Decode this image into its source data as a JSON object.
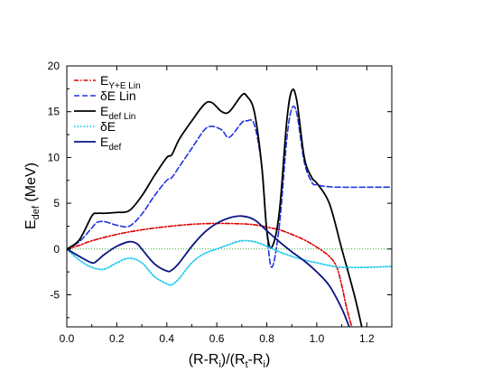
{
  "chart_data": {
    "type": "line",
    "xlabel": {
      "parts": [
        {
          "t": "(R-R",
          "sub": false
        },
        {
          "t": "i",
          "sub": true
        },
        {
          "t": ")/(R",
          "sub": false
        },
        {
          "t": "t",
          "sub": true
        },
        {
          "t": "-R",
          "sub": false
        },
        {
          "t": "i",
          "sub": true
        },
        {
          "t": ")",
          "sub": false
        }
      ]
    },
    "ylabel": {
      "parts": [
        {
          "t": "E",
          "sub": false
        },
        {
          "t": "def",
          "sub": true
        },
        {
          "t": " (MeV)",
          "sub": false
        }
      ]
    },
    "xlim": [
      0,
      1.3
    ],
    "ylim": [
      -8.5,
      20
    ],
    "x_ticks": [
      0.0,
      0.2,
      0.4,
      0.6,
      0.8,
      1.0,
      1.2
    ],
    "x_tick_labels": [
      "0.0",
      "0.2",
      "0.4",
      "0.6",
      "0.8",
      "1.0",
      "1.2"
    ],
    "y_ticks": [
      -5,
      0,
      5,
      10,
      15,
      20
    ],
    "y_tick_labels": [
      "-5",
      "0",
      "5",
      "10",
      "15",
      "20"
    ],
    "legend_position": "top-left",
    "zero_line": {
      "color": "#33aa33",
      "style": "dotted"
    },
    "series": [
      {
        "name_parts": [
          {
            "t": "E",
            "sub": false
          },
          {
            "t": "Y+E Lin",
            "sub": true
          }
        ],
        "color": "#dd0000",
        "dash": "dashdot",
        "width": 1.6,
        "x": [
          0,
          0.05,
          0.1,
          0.2,
          0.3,
          0.4,
          0.5,
          0.6,
          0.7,
          0.75,
          0.8,
          0.85,
          0.9,
          0.95,
          1.0,
          1.05,
          1.08,
          1.1,
          1.12,
          1.14,
          1.15
        ],
        "y": [
          0,
          0.4,
          0.9,
          1.6,
          2.1,
          2.45,
          2.7,
          2.8,
          2.75,
          2.65,
          2.4,
          2.1,
          1.6,
          1.0,
          0.2,
          -0.8,
          -2.0,
          -4.0,
          -6.5,
          -8.5,
          -9.5
        ]
      },
      {
        "name_parts": [
          {
            "t": "δE Lin",
            "sub": false
          }
        ],
        "color": "#2233dd",
        "dash": "dashed",
        "width": 1.6,
        "x": [
          0,
          0.05,
          0.1,
          0.12,
          0.15,
          0.2,
          0.25,
          0.3,
          0.35,
          0.4,
          0.42,
          0.45,
          0.5,
          0.55,
          0.58,
          0.62,
          0.65,
          0.7,
          0.72,
          0.75,
          0.78,
          0.8,
          0.82,
          0.85,
          0.88,
          0.9,
          0.92,
          0.95,
          0.98,
          1.0,
          1.05,
          1.1,
          1.2,
          1.3
        ],
        "y": [
          0,
          0.8,
          2.3,
          2.9,
          3.0,
          2.6,
          2.5,
          3.8,
          5.8,
          7.5,
          7.8,
          9.0,
          11.0,
          13.0,
          13.4,
          13.0,
          12.2,
          13.8,
          14.0,
          13.6,
          9.0,
          2.0,
          -2.0,
          2.5,
          12.0,
          15.3,
          14.8,
          9.5,
          7.3,
          7.0,
          6.8,
          6.75,
          6.75,
          6.75
        ]
      },
      {
        "name_parts": [
          {
            "t": "E",
            "sub": false
          },
          {
            "t": "def Lin",
            "sub": true
          }
        ],
        "color": "#000000",
        "dash": "solid",
        "width": 1.8,
        "x": [
          0,
          0.05,
          0.1,
          0.12,
          0.15,
          0.2,
          0.25,
          0.3,
          0.35,
          0.4,
          0.42,
          0.45,
          0.5,
          0.55,
          0.58,
          0.62,
          0.65,
          0.7,
          0.72,
          0.75,
          0.78,
          0.8,
          0.82,
          0.85,
          0.88,
          0.9,
          0.92,
          0.95,
          0.98,
          1.0,
          1.05,
          1.1,
          1.15,
          1.18
        ],
        "y": [
          0,
          1.0,
          3.6,
          3.9,
          3.9,
          4.0,
          4.2,
          5.8,
          8.0,
          10.0,
          10.3,
          12.0,
          14.0,
          15.8,
          16.0,
          15.0,
          15.0,
          16.8,
          16.7,
          15.0,
          9.0,
          2.0,
          0.2,
          4.0,
          14.0,
          17.3,
          16.2,
          10.0,
          7.8,
          7.2,
          5.0,
          0.0,
          -5.0,
          -8.5
        ]
      },
      {
        "name_parts": [
          {
            "t": "δE",
            "sub": false
          }
        ],
        "color": "#22ccee",
        "dash": "dotted",
        "width": 1.8,
        "x": [
          0,
          0.05,
          0.1,
          0.15,
          0.2,
          0.25,
          0.3,
          0.35,
          0.4,
          0.42,
          0.45,
          0.5,
          0.55,
          0.6,
          0.65,
          0.7,
          0.75,
          0.8,
          0.85,
          0.9,
          0.95,
          1.0,
          1.05,
          1.1,
          1.2,
          1.3
        ],
        "y": [
          0,
          -1.2,
          -2.0,
          -2.2,
          -1.5,
          -1.0,
          -1.5,
          -3.0,
          -3.8,
          -3.9,
          -3.2,
          -1.5,
          -0.5,
          0.0,
          0.5,
          0.9,
          0.8,
          0.3,
          -0.3,
          -0.8,
          -1.2,
          -1.5,
          -1.8,
          -2.0,
          -2.0,
          -1.9
        ]
      },
      {
        "name_parts": [
          {
            "t": "E",
            "sub": false
          },
          {
            "t": "def",
            "sub": true
          }
        ],
        "color": "#0a1480",
        "dash": "solid",
        "width": 1.8,
        "x": [
          0,
          0.05,
          0.1,
          0.12,
          0.15,
          0.2,
          0.25,
          0.28,
          0.3,
          0.35,
          0.4,
          0.42,
          0.45,
          0.5,
          0.55,
          0.6,
          0.65,
          0.7,
          0.75,
          0.8,
          0.85,
          0.9,
          0.95,
          1.0,
          1.05,
          1.1,
          1.13,
          1.15
        ],
        "y": [
          0,
          -0.8,
          -1.5,
          -1.3,
          -0.6,
          0.3,
          0.8,
          0.6,
          0.0,
          -1.6,
          -2.4,
          -2.3,
          -1.5,
          0.3,
          1.8,
          2.8,
          3.4,
          3.6,
          3.2,
          2.0,
          0.8,
          -0.3,
          -1.3,
          -2.5,
          -4.0,
          -6.5,
          -8.5,
          -9.5
        ]
      }
    ]
  }
}
